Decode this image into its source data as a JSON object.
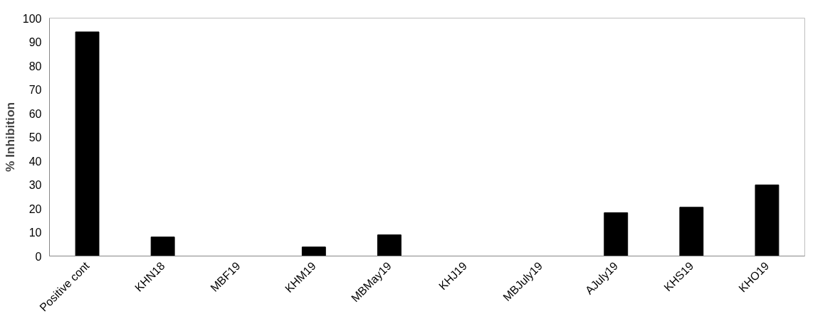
{
  "chart_data": {
    "type": "bar",
    "ylabel": "% Inhibition",
    "categories": [
      "Positive cont",
      "KHN18",
      "MBF19",
      "KHM19",
      "MBMay19",
      "KHJ19",
      "MBJuly19",
      "AJuly19",
      "KHS19",
      "KHO19"
    ],
    "values": [
      94.2,
      8.0,
      0,
      3.8,
      8.9,
      0,
      0,
      18.2,
      20.5,
      29.9
    ],
    "color": "#000000",
    "ylim": [
      0,
      100
    ],
    "yticks": [
      0,
      10,
      20,
      30,
      40,
      50,
      60,
      70,
      80,
      90,
      100
    ],
    "grid": false
  }
}
